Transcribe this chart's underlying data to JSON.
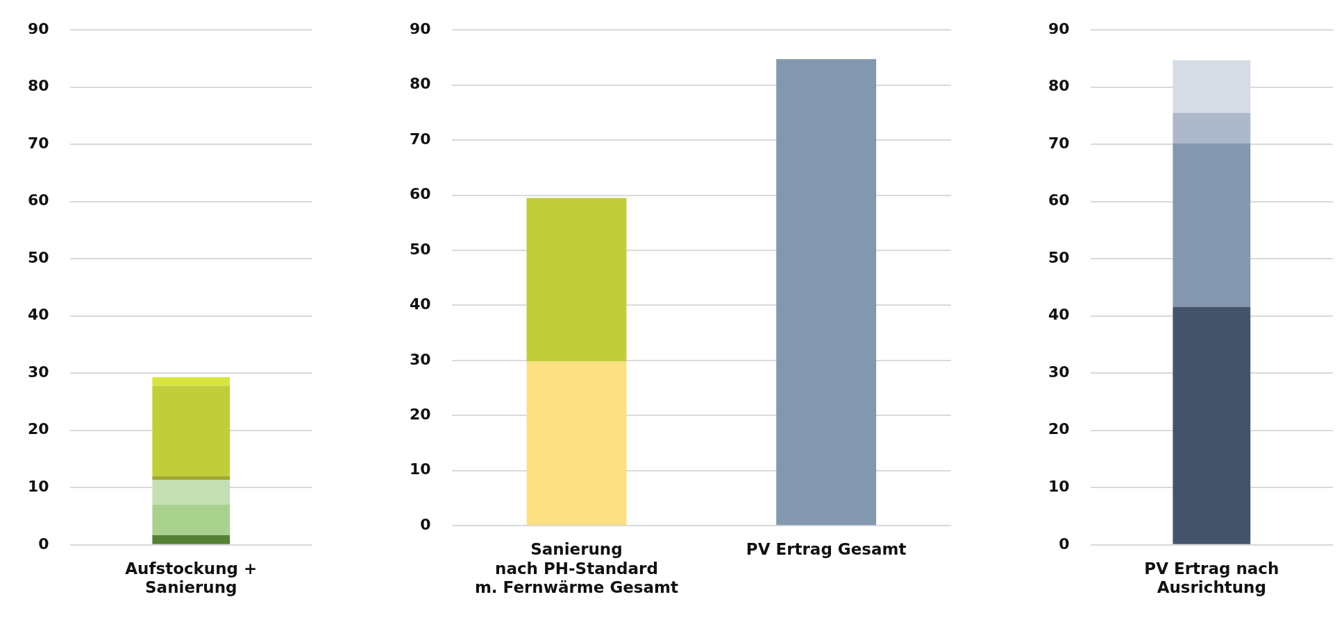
{
  "chart_data": [
    {
      "type": "bar",
      "stacked": true,
      "categories": [
        "Aufstockung +\nSanierung"
      ],
      "ylim": [
        0,
        90
      ],
      "yticks": [
        0,
        10,
        20,
        30,
        40,
        50,
        60,
        70,
        80,
        90
      ],
      "grid": "y",
      "legend": false,
      "series": [
        {
          "color": "#548235",
          "values": [
            1.7
          ]
        },
        {
          "color": "#a9d18e",
          "values": [
            5.3
          ]
        },
        {
          "color": "#c5e0b4",
          "values": [
            4.3
          ]
        },
        {
          "color": "#a3a832",
          "values": [
            0.7
          ]
        },
        {
          "color": "#c2cd3a",
          "values": [
            15.8
          ]
        },
        {
          "color": "#d9e43f",
          "values": [
            1.5
          ]
        }
      ]
    },
    {
      "type": "bar",
      "stacked": true,
      "categories": [
        "Sanierung\nnach PH-Standard\nm. Fernwärme Gesamt",
        "PV Ertrag Gesamt"
      ],
      "ylim": [
        0,
        90
      ],
      "yticks": [
        0,
        10,
        20,
        30,
        40,
        50,
        60,
        70,
        80,
        90
      ],
      "grid": "y",
      "legend": false,
      "series": [
        {
          "color": "#fde084",
          "values": [
            29.8,
            null
          ]
        },
        {
          "color": "#c2cd3a",
          "values": [
            29.7,
            null
          ]
        },
        {
          "color": "#8497b0",
          "values": [
            null,
            84.7
          ]
        }
      ]
    },
    {
      "type": "bar",
      "stacked": true,
      "categories": [
        "PV Ertrag nach\nAusrichtung"
      ],
      "ylim": [
        0,
        90
      ],
      "yticks": [
        0,
        10,
        20,
        30,
        40,
        50,
        60,
        70,
        80,
        90
      ],
      "grid": "y",
      "legend": false,
      "series": [
        {
          "color": "#44546a",
          "values": [
            41.6
          ]
        },
        {
          "color": "#8497b0",
          "values": [
            28.6
          ]
        },
        {
          "color": "#adb9ca",
          "values": [
            5.3
          ]
        },
        {
          "color": "#d6dce5",
          "values": [
            9.2
          ]
        }
      ]
    }
  ]
}
